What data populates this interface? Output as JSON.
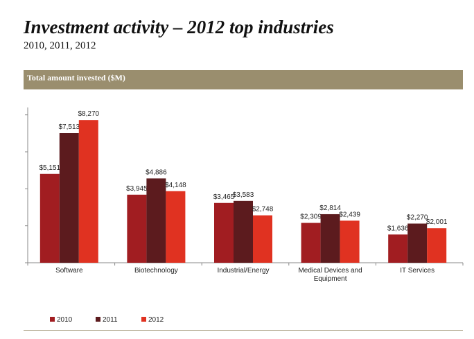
{
  "header": {
    "title": "Investment activity – 2012 top industries",
    "subtitle": "2010, 2011, 2012",
    "banner": "Total amount invested ($M)"
  },
  "colors": {
    "banner": "#9a8e6e",
    "series": [
      "#a11d21",
      "#5c1b1e",
      "#e03221"
    ]
  },
  "chart_data": {
    "type": "bar",
    "title": "Total amount invested ($M)",
    "xlabel": "",
    "ylabel": "",
    "ylim": [
      0,
      9000
    ],
    "grid": false,
    "legend_position": "bottom-left",
    "categories": [
      [
        "Software"
      ],
      [
        "Biotechnology"
      ],
      [
        "Industrial/Energy"
      ],
      [
        "Medical Devices and",
        "Equipment"
      ],
      [
        "IT Services"
      ]
    ],
    "series": [
      {
        "name": "2010",
        "values": [
          5151,
          3945,
          3465,
          2309,
          1636
        ],
        "labels": [
          "$5,151",
          "$3,945",
          "$3,465",
          "$2,309",
          "$1,636"
        ]
      },
      {
        "name": "2011",
        "values": [
          7513,
          4886,
          3583,
          2814,
          2270
        ],
        "labels": [
          "$7,513",
          "$4,886",
          "$3,583",
          "$2,814",
          "$2,270"
        ]
      },
      {
        "name": "2012",
        "values": [
          8270,
          4148,
          2748,
          2439,
          2001
        ],
        "labels": [
          "$8,270",
          "$4,148",
          "$2,748",
          "$2,439",
          "$2,001"
        ]
      }
    ]
  }
}
